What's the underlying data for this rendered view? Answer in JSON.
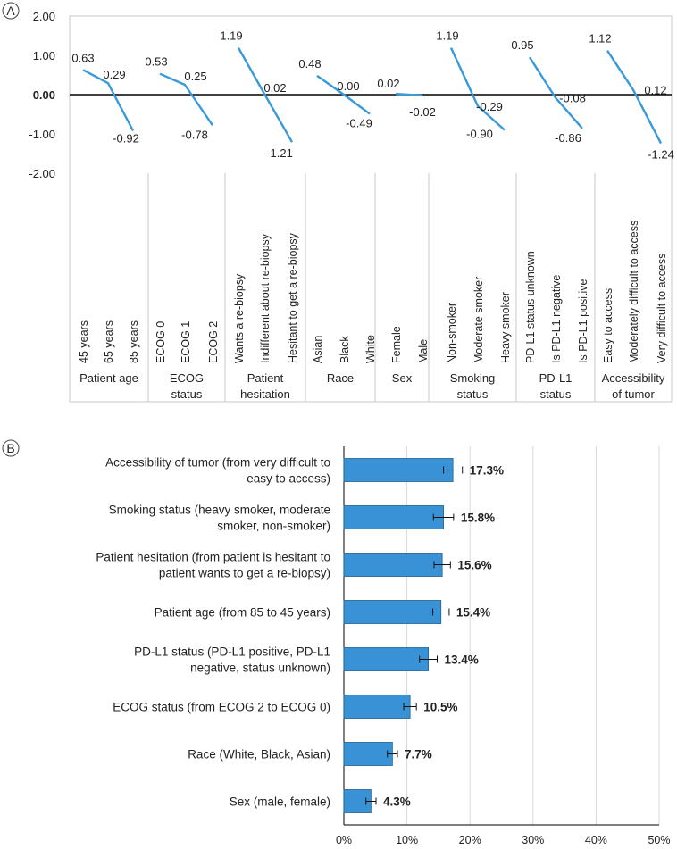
{
  "panels": {
    "a_letter": "A",
    "b_letter": "B"
  },
  "colors": {
    "series": "#3a9ad9",
    "bar_fill": "#3a92d6",
    "bar_stroke": "#1f5f91",
    "grid": "#d9d9d9",
    "axis": "#000000",
    "divider": "#c8c8c8"
  },
  "chart_data": [
    {
      "type": "line",
      "panel": "A",
      "ylim": [
        -2.0,
        2.0
      ],
      "yticks": [
        "2.00",
        "1.00",
        "0.00",
        "-1.00",
        "-2.00"
      ],
      "ytick_values": [
        2,
        1,
        0,
        -1,
        -2
      ],
      "groups": [
        {
          "label": [
            "Patient age"
          ],
          "levels": [
            "45 years",
            "65 years",
            "85 years"
          ],
          "values": [
            0.63,
            0.29,
            -0.92
          ],
          "labels": [
            "0.63",
            "0.29",
            "-0.92"
          ]
        },
        {
          "label": [
            "ECOG",
            "status"
          ],
          "levels": [
            "ECOG 0",
            "ECOG 1",
            "ECOG 2"
          ],
          "values": [
            0.53,
            0.25,
            -0.78
          ],
          "labels": [
            "0.53",
            "0.25",
            "-0.78"
          ]
        },
        {
          "label": [
            "Patient",
            "hesitation"
          ],
          "levels": [
            "Wants a re-biopsy",
            "Indifferent about re-biopsy",
            "Hesitant to get a re-biopsy"
          ],
          "values": [
            1.19,
            0.02,
            -1.21
          ],
          "labels": [
            "1.19",
            "0.02",
            "-1.21"
          ]
        },
        {
          "label": [
            "Race"
          ],
          "levels": [
            "Asian",
            "Black",
            "White"
          ],
          "values": [
            0.48,
            0.0,
            -0.49
          ],
          "labels": [
            "0.48",
            "0.00",
            "-0.49"
          ]
        },
        {
          "label": [
            "Sex"
          ],
          "levels": [
            "Female",
            "Male"
          ],
          "values": [
            0.02,
            -0.02
          ],
          "labels": [
            "0.02",
            "-0.02"
          ]
        },
        {
          "label": [
            "Smoking",
            "status"
          ],
          "levels": [
            "Non-smoker",
            "Moderate smoker",
            "Heavy smoker"
          ],
          "values": [
            1.19,
            -0.29,
            -0.9
          ],
          "labels": [
            "1.19",
            "-0.29",
            "-0.90"
          ]
        },
        {
          "label": [
            "PD-L1",
            "status"
          ],
          "levels": [
            "PD-L1 status unknown",
            "Is PD-L1 negative",
            "Is PD-L1 positive"
          ],
          "values": [
            0.95,
            -0.08,
            -0.86
          ],
          "labels": [
            "0.95",
            "-0.08",
            "-0.86"
          ]
        },
        {
          "label": [
            "Accessibility",
            "of tumor"
          ],
          "levels": [
            "Easy to access",
            "Moderately difficult to access",
            "Very difficult to access"
          ],
          "values": [
            1.12,
            0.12,
            -1.24
          ],
          "labels": [
            "1.12",
            "0.12",
            "-1.24"
          ]
        }
      ]
    },
    {
      "type": "bar",
      "panel": "B",
      "orientation": "horizontal",
      "xlim": [
        0,
        50
      ],
      "xticks": [
        "0%",
        "10%",
        "20%",
        "30%",
        "40%",
        "50%"
      ],
      "xtick_values": [
        0,
        10,
        20,
        30,
        40,
        50
      ],
      "grid": true,
      "categories": [
        [
          "Accessibility of tumor (from very difficult to",
          "easy to access)"
        ],
        [
          "Smoking status (heavy smoker, moderate",
          "smoker, non-smoker)"
        ],
        [
          "Patient hesitation (from patient is hesitant to",
          "patient wants to get a re-biopsy)"
        ],
        [
          "Patient age (from 85 to 45 years)"
        ],
        [
          "PD-L1 status (PD-L1 positive, PD-L1",
          "negative, status unknown)"
        ],
        [
          "ECOG status (from ECOG 2 to ECOG 0)"
        ],
        [
          "Race (White, Black, Asian)"
        ],
        [
          "Sex (male, female)"
        ]
      ],
      "values": [
        17.3,
        15.8,
        15.6,
        15.4,
        13.4,
        10.5,
        7.7,
        4.3
      ],
      "value_labels": [
        "17.3%",
        "15.8%",
        "15.6%",
        "15.4%",
        "13.4%",
        "10.5%",
        "7.7%",
        "4.3%"
      ],
      "errors": [
        1.5,
        1.6,
        1.3,
        1.3,
        1.4,
        1.0,
        0.8,
        0.8
      ]
    }
  ]
}
